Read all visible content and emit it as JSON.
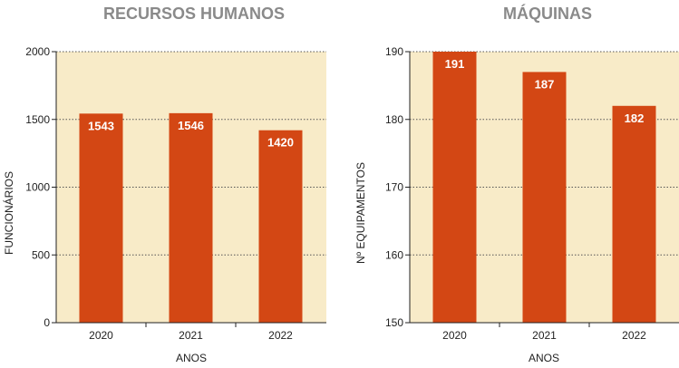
{
  "colors": {
    "plot_background": "#f8ebc8",
    "bar": "#d34714",
    "bar_label": "#ffffff",
    "title": "#8a8a8a",
    "grid": "#555555"
  },
  "chart_data": [
    {
      "type": "bar",
      "title": "RECURSOS HUMANOS",
      "xlabel": "ANOS",
      "ylabel": "FUNCIONÁRIOS",
      "categories": [
        "2020",
        "2021",
        "2022"
      ],
      "values": [
        1543,
        1546,
        1420
      ],
      "data_labels": [
        "1543",
        "1546",
        "1420"
      ],
      "ylim": [
        0,
        2000
      ],
      "yticks": [
        0,
        500,
        1000,
        1500,
        2000
      ],
      "ytick_labels": [
        "0",
        "500",
        "1000",
        "1500",
        "2000"
      ],
      "grid": true,
      "grid_style": "dotted horizontal"
    },
    {
      "type": "bar",
      "title": "MÁQUINAS",
      "xlabel": "ANOS",
      "ylabel": "Nº EQUIPAMENTOS",
      "categories": [
        "2020",
        "2021",
        "2022"
      ],
      "values": [
        191,
        187,
        182
      ],
      "data_labels": [
        "191",
        "187",
        "182"
      ],
      "ylim": [
        150,
        190
      ],
      "yticks": [
        150,
        160,
        170,
        180,
        190
      ],
      "ytick_labels": [
        "150",
        "160",
        "170",
        "180",
        "190"
      ],
      "grid": true,
      "grid_style": "dotted horizontal"
    }
  ]
}
